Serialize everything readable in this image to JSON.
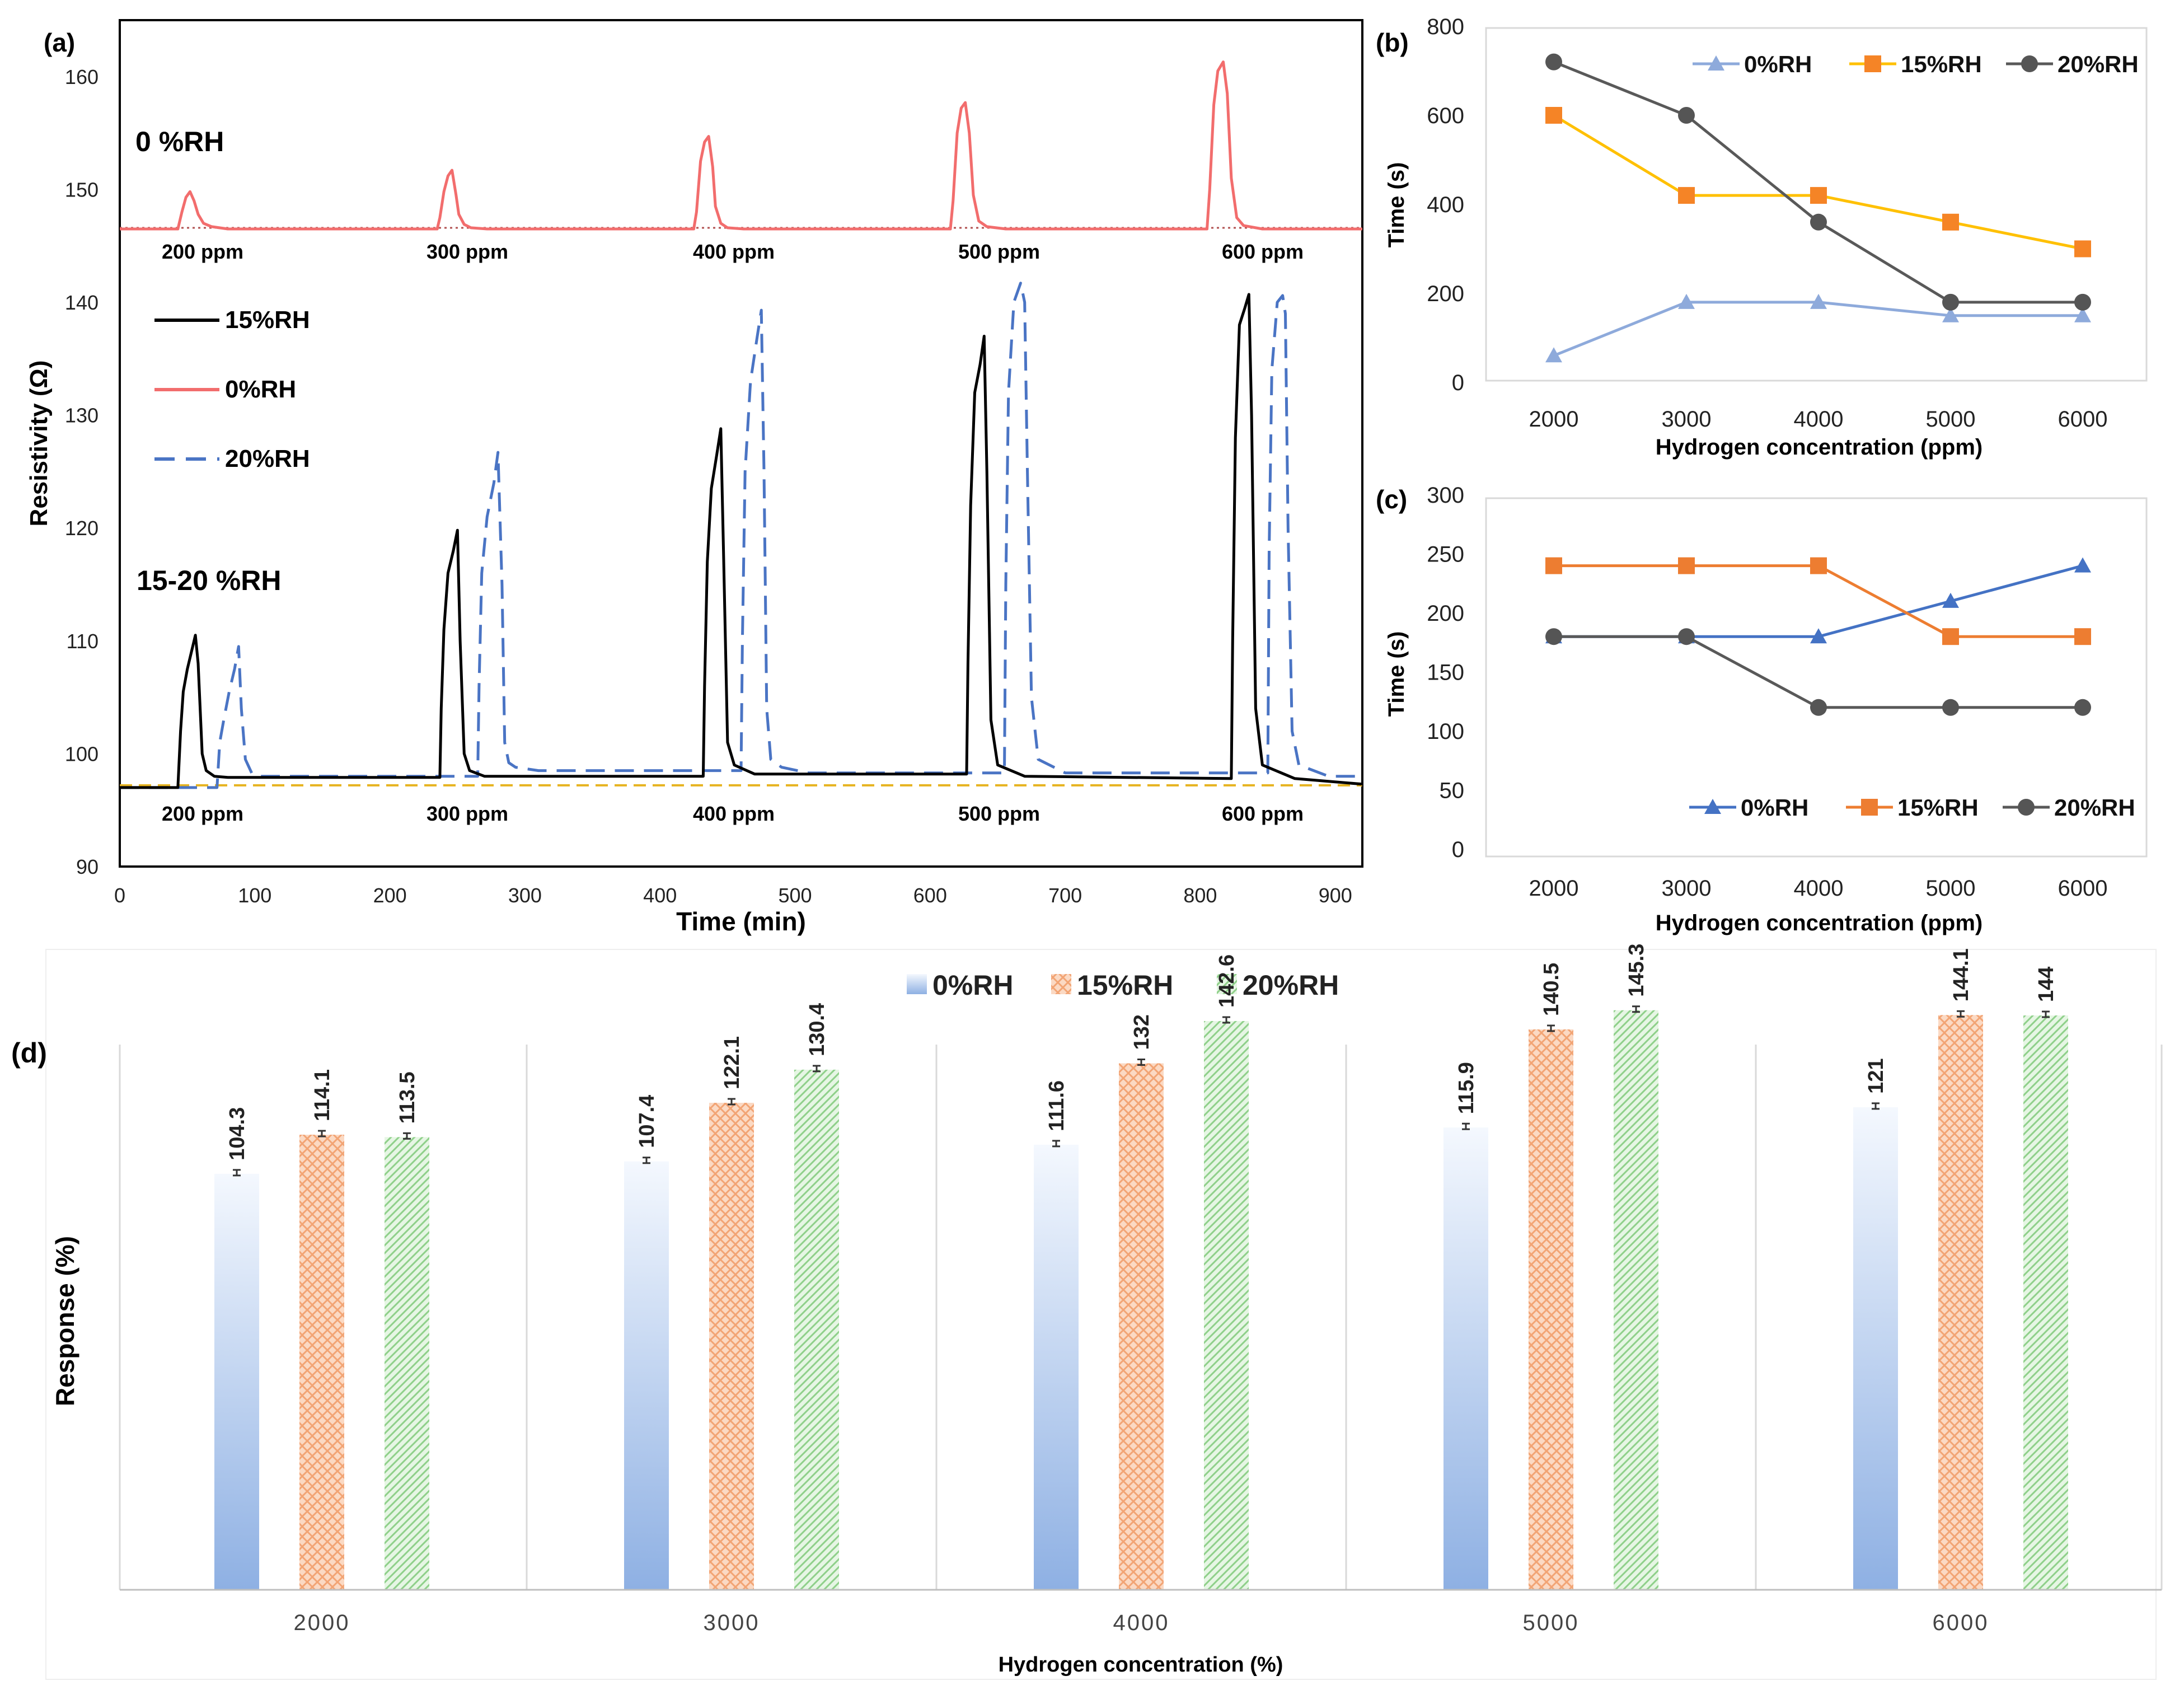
{
  "chart_data": [
    {
      "id": "a",
      "panel_label": "(a)",
      "type": "line",
      "title": "",
      "xlabel": "Time (min)",
      "ylabel": "Resistivity (Ω)",
      "xlim": [
        0,
        920
      ],
      "ylim": [
        90,
        165
      ],
      "xticks": [
        "0",
        "100",
        "200",
        "300",
        "400",
        "500",
        "600",
        "700",
        "800",
        "900"
      ],
      "yticks": [
        "90",
        "100",
        "110",
        "120",
        "130",
        "140",
        "150",
        "160"
      ],
      "annotations": [
        "0 %RH",
        "15-20 %RH"
      ],
      "top_concentration_labels": [
        "200 ppm",
        "300 ppm",
        "400 ppm",
        "500 ppm",
        "600 ppm"
      ],
      "bottom_concentration_labels": [
        "200 ppm",
        "300 ppm",
        "400 ppm",
        "500 ppm",
        "600 ppm"
      ],
      "legend": [
        "15%RH",
        "0%RH",
        "20%RH"
      ],
      "series": [
        {
          "name": "0%RH",
          "color": "#f26d6d",
          "dash": "solid",
          "x": [
            0,
            43,
            46,
            49,
            52,
            55,
            58,
            62,
            68,
            80,
            235,
            237,
            240,
            243,
            246,
            249,
            251,
            255,
            260,
            272,
            425,
            427,
            430,
            433,
            436,
            439,
            441,
            445,
            450,
            462,
            615,
            617,
            620,
            623,
            626,
            629,
            632,
            636,
            642,
            656,
            805,
            807,
            810,
            813,
            817,
            820,
            823,
            827,
            832,
            846,
            920
          ],
          "y": [
            146.5,
            146.5,
            148.0,
            149.3,
            149.8,
            149.0,
            147.8,
            147.0,
            146.7,
            146.5,
            146.5,
            147.5,
            149.8,
            151.2,
            151.7,
            149.5,
            147.8,
            146.9,
            146.6,
            146.5,
            146.5,
            148.0,
            152.5,
            154.2,
            154.7,
            152.0,
            148.5,
            147.0,
            146.6,
            146.5,
            146.5,
            149.0,
            155.0,
            157.2,
            157.7,
            155.0,
            149.5,
            147.2,
            146.7,
            146.5,
            146.5,
            150.0,
            157.5,
            160.5,
            161.3,
            158.5,
            151.0,
            147.5,
            146.8,
            146.5,
            146.5
          ]
        },
        {
          "name": "15%RH",
          "color": "#000000",
          "dash": "solid",
          "x": [
            0,
            43,
            45,
            47,
            50,
            53,
            56,
            58,
            61,
            64,
            70,
            80,
            237,
            238,
            240,
            243,
            247,
            250,
            252,
            255,
            259,
            270,
            432,
            433,
            435,
            438,
            442,
            445,
            447,
            450,
            455,
            470,
            627,
            628,
            630,
            633,
            637,
            640,
            642,
            645,
            650,
            670,
            823,
            824,
            826,
            829,
            833,
            836,
            838,
            841,
            846,
            870,
            920
          ],
          "y": [
            97.0,
            97.0,
            102.0,
            105.5,
            107.5,
            109.0,
            110.5,
            108.0,
            100.0,
            98.5,
            98.0,
            97.9,
            97.9,
            104.0,
            111.0,
            116.0,
            118.0,
            119.8,
            110.0,
            100.0,
            98.5,
            98.0,
            98.0,
            106.0,
            117.0,
            123.5,
            126.5,
            128.8,
            118.0,
            101.0,
            99.0,
            98.2,
            98.2,
            108.0,
            122.0,
            132.0,
            134.5,
            137.0,
            125.0,
            103.0,
            99.0,
            98.0,
            97.8,
            110.0,
            128.0,
            138.0,
            139.5,
            140.7,
            130.0,
            104.0,
            99.0,
            97.8,
            97.3
          ]
        },
        {
          "name": "20%RH",
          "color": "#4a74c4",
          "dash": "dashed",
          "x": [
            0,
            72,
            74,
            77,
            81,
            85,
            88,
            90,
            93,
            98,
            105,
            265,
            266,
            268,
            272,
            277,
            280,
            283,
            285,
            288,
            293,
            310,
            460,
            461,
            463,
            467,
            472,
            475,
            477,
            479,
            482,
            490,
            510,
            655,
            656,
            658,
            662,
            667,
            670,
            672,
            675,
            680,
            700,
            850,
            851,
            853,
            857,
            861,
            863,
            865,
            868,
            873,
            895,
            920
          ],
          "y": [
            97.0,
            97.0,
            101.0,
            103.0,
            105.5,
            107.5,
            109.5,
            104.0,
            99.5,
            98.2,
            98.0,
            98.0,
            106.0,
            116.0,
            121.0,
            124.0,
            126.7,
            115.0,
            101.0,
            99.2,
            98.8,
            98.5,
            98.5,
            110.0,
            125.0,
            133.0,
            137.0,
            139.3,
            125.0,
            104.0,
            99.5,
            98.8,
            98.3,
            98.3,
            115.0,
            132.0,
            140.0,
            141.7,
            140.0,
            125.0,
            105.0,
            99.5,
            98.3,
            98.3,
            118.0,
            134.0,
            140.0,
            140.6,
            139.0,
            120.0,
            102.0,
            99.0,
            98.0,
            98.0
          ]
        }
      ],
      "baselines": [
        {
          "name": "0%RH baseline",
          "y": 146.6,
          "color": "#b05050",
          "style": "dotted"
        },
        {
          "name": "15-20%RH baseline",
          "y": 97.2,
          "color": "#e6b320",
          "style": "dashed"
        }
      ]
    },
    {
      "id": "b",
      "panel_label": "(b)",
      "type": "line",
      "title": "",
      "xlabel": "Hydrogen concentration (ppm)",
      "ylabel": "Time (s)",
      "categories": [
        "2000",
        "3000",
        "4000",
        "5000",
        "6000"
      ],
      "ylim": [
        0,
        800
      ],
      "yticks": [
        "0",
        "200",
        "400",
        "600",
        "800"
      ],
      "legend_position": "top-right",
      "series": [
        {
          "name": "0%RH",
          "color": "#8eaadb",
          "marker": "triangle",
          "values": [
            60,
            180,
            180,
            150,
            150
          ]
        },
        {
          "name": "15%RH",
          "color": "#ffc000",
          "marker_color": "#f58426",
          "marker": "square",
          "values": [
            600,
            420,
            420,
            360,
            300
          ]
        },
        {
          "name": "20%RH",
          "color": "#595959",
          "marker_color": "#555555",
          "marker": "circle",
          "values": [
            720,
            600,
            360,
            180,
            180
          ]
        }
      ]
    },
    {
      "id": "c",
      "panel_label": "(c)",
      "type": "line",
      "title": "",
      "xlabel": "Hydrogen concentration (ppm)",
      "ylabel": "Time (s)",
      "categories": [
        "2000",
        "3000",
        "4000",
        "5000",
        "6000"
      ],
      "ylim": [
        0,
        300
      ],
      "yticks": [
        "0",
        "50",
        "100",
        "150",
        "200",
        "250",
        "300"
      ],
      "legend_position": "bottom-right",
      "series": [
        {
          "name": "0%RH",
          "color": "#4472c4",
          "marker": "triangle",
          "values": [
            180,
            180,
            180,
            210,
            240
          ]
        },
        {
          "name": "15%RH",
          "color": "#ed7d31",
          "marker": "square",
          "values": [
            240,
            240,
            240,
            180,
            180
          ]
        },
        {
          "name": "20%RH",
          "color": "#595959",
          "marker_color": "#555555",
          "marker": "circle",
          "values": [
            180,
            180,
            120,
            120,
            120
          ]
        }
      ]
    },
    {
      "id": "d",
      "panel_label": "(d)",
      "type": "bar",
      "title": "",
      "xlabel": "Hydrogen concentration (%)",
      "ylabel": "Response (%)",
      "categories": [
        "2000",
        "3000",
        "4000",
        "5000",
        "6000"
      ],
      "ylim": [
        0,
        160
      ],
      "legend_position": "top",
      "series": [
        {
          "name": "0%RH",
          "color": "#a9c2e8",
          "values": [
            104.3,
            107.4,
            111.6,
            115.9,
            121
          ],
          "labels": [
            "104.3",
            "107.4",
            "111.6",
            "115.9",
            "121"
          ]
        },
        {
          "name": "15%RH",
          "color": "#f7c3a1",
          "values": [
            114.1,
            122.1,
            132,
            140.5,
            144.1
          ],
          "labels": [
            "114.1",
            "122.1",
            "132",
            "140.5",
            "144.1"
          ]
        },
        {
          "name": "20%RH",
          "color": "#b8e3b6",
          "values": [
            113.5,
            130.4,
            142.6,
            145.3,
            144
          ],
          "labels": [
            "113.5",
            "130.4",
            "142.6",
            "145.3",
            "144"
          ]
        }
      ]
    }
  ]
}
